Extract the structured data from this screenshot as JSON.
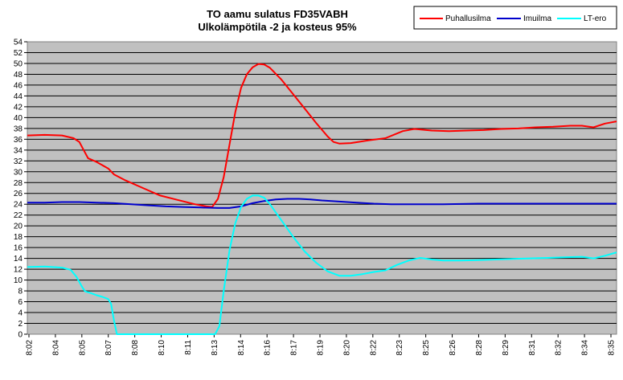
{
  "chart_data": {
    "type": "line",
    "title": "TO aamu sulatus FD35VABH",
    "subtitle": "Ulkolämpötila -2 ja kosteus 95%",
    "xlabel": "",
    "ylabel": "",
    "ylim": [
      0,
      54
    ],
    "y_ticks": [
      0,
      2,
      4,
      6,
      8,
      10,
      12,
      14,
      16,
      18,
      20,
      22,
      24,
      26,
      28,
      30,
      32,
      34,
      36,
      38,
      40,
      42,
      44,
      46,
      48,
      50,
      52,
      54
    ],
    "x_range_minutes": [
      482,
      516
    ],
    "x_tick_labels": [
      "8:02",
      "8:04",
      "8:05",
      "8:07",
      "8:08",
      "8:10",
      "8:11",
      "8:13",
      "8:14",
      "8:16",
      "8:17",
      "8:19",
      "8:20",
      "8:22",
      "8:23",
      "8:25",
      "8:26",
      "8:28",
      "8:29",
      "8:31",
      "8:32",
      "8:34",
      "8:35"
    ],
    "grid": true,
    "plot_background": "#c0c0c0",
    "legend_position": "top-right",
    "series": [
      {
        "name": "Puhallusilma",
        "color": "#ff0000",
        "points": [
          [
            "8:02:00",
            36.7
          ],
          [
            "8:03:00",
            36.8
          ],
          [
            "8:04:00",
            36.7
          ],
          [
            "8:04:40",
            36.2
          ],
          [
            "8:05:00",
            35.5
          ],
          [
            "8:05:15",
            34.0
          ],
          [
            "8:05:30",
            32.5
          ],
          [
            "8:06:00",
            31.8
          ],
          [
            "8:06:40",
            30.6
          ],
          [
            "8:07:00",
            29.5
          ],
          [
            "8:07:40",
            28.4
          ],
          [
            "8:08:40",
            27.0
          ],
          [
            "8:09:40",
            25.6
          ],
          [
            "8:10:40",
            24.8
          ],
          [
            "8:11:40",
            24.0
          ],
          [
            "8:12:20",
            23.6
          ],
          [
            "8:12:40",
            23.5
          ],
          [
            "8:13:00",
            25.0
          ],
          [
            "8:13:20",
            29.0
          ],
          [
            "8:13:40",
            35.0
          ],
          [
            "8:14:00",
            41.0
          ],
          [
            "8:14:20",
            45.5
          ],
          [
            "8:14:40",
            48.0
          ],
          [
            "8:15:00",
            49.3
          ],
          [
            "8:15:20",
            49.9
          ],
          [
            "8:15:40",
            49.8
          ],
          [
            "8:16:00",
            49.2
          ],
          [
            "8:16:40",
            47.0
          ],
          [
            "8:17:40",
            43.0
          ],
          [
            "8:18:40",
            39.0
          ],
          [
            "8:19:20",
            36.5
          ],
          [
            "8:19:40",
            35.5
          ],
          [
            "8:20:00",
            35.2
          ],
          [
            "8:20:40",
            35.3
          ],
          [
            "8:21:40",
            35.8
          ],
          [
            "8:22:40",
            36.2
          ],
          [
            "8:23:40",
            37.5
          ],
          [
            "8:24:20",
            37.9
          ],
          [
            "8:25:20",
            37.6
          ],
          [
            "8:26:20",
            37.5
          ],
          [
            "8:27:20",
            37.6
          ],
          [
            "8:28:20",
            37.7
          ],
          [
            "8:29:20",
            37.9
          ],
          [
            "8:30:20",
            38.0
          ],
          [
            "8:31:20",
            38.2
          ],
          [
            "8:32:20",
            38.3
          ],
          [
            "8:33:20",
            38.5
          ],
          [
            "8:34:00",
            38.5
          ],
          [
            "8:34:40",
            38.2
          ],
          [
            "8:35:20",
            38.9
          ],
          [
            "8:36:00",
            39.3
          ]
        ]
      },
      {
        "name": "Imuilma",
        "color": "#0000cc",
        "points": [
          [
            "8:02:00",
            24.3
          ],
          [
            "8:03:00",
            24.3
          ],
          [
            "8:04:00",
            24.4
          ],
          [
            "8:05:00",
            24.4
          ],
          [
            "8:06:00",
            24.3
          ],
          [
            "8:07:00",
            24.2
          ],
          [
            "8:08:00",
            24.0
          ],
          [
            "8:09:00",
            23.8
          ],
          [
            "8:10:00",
            23.6
          ],
          [
            "8:11:00",
            23.5
          ],
          [
            "8:12:00",
            23.4
          ],
          [
            "8:13:00",
            23.3
          ],
          [
            "8:13:40",
            23.3
          ],
          [
            "8:14:20",
            23.6
          ],
          [
            "8:15:00",
            24.2
          ],
          [
            "8:15:40",
            24.6
          ],
          [
            "8:16:20",
            24.9
          ],
          [
            "8:17:00",
            25.0
          ],
          [
            "8:17:40",
            25.0
          ],
          [
            "8:18:20",
            24.9
          ],
          [
            "8:19:00",
            24.7
          ],
          [
            "8:20:00",
            24.5
          ],
          [
            "8:21:00",
            24.3
          ],
          [
            "8:22:00",
            24.1
          ],
          [
            "8:23:00",
            24.0
          ],
          [
            "8:24:00",
            24.0
          ],
          [
            "8:25:00",
            24.0
          ],
          [
            "8:26:00",
            24.0
          ],
          [
            "8:28:00",
            24.1
          ],
          [
            "8:30:00",
            24.1
          ],
          [
            "8:32:00",
            24.1
          ],
          [
            "8:34:00",
            24.1
          ],
          [
            "8:36:00",
            24.1
          ]
        ]
      },
      {
        "name": "LT-ero",
        "color": "#00ffff",
        "points": [
          [
            "8:02:00",
            12.4
          ],
          [
            "8:03:00",
            12.5
          ],
          [
            "8:04:00",
            12.3
          ],
          [
            "8:04:30",
            11.9
          ],
          [
            "8:04:50",
            10.6
          ],
          [
            "8:05:10",
            8.7
          ],
          [
            "8:05:20",
            7.9
          ],
          [
            "8:05:40",
            7.6
          ],
          [
            "8:06:00",
            7.2
          ],
          [
            "8:06:20",
            6.9
          ],
          [
            "8:06:40",
            6.5
          ],
          [
            "8:06:50",
            5.6
          ],
          [
            "8:07:00",
            2.5
          ],
          [
            "8:07:10",
            0.0
          ],
          [
            "8:08:00",
            0.0
          ],
          [
            "8:09:00",
            0.0
          ],
          [
            "8:10:00",
            0.0
          ],
          [
            "8:11:00",
            0.0
          ],
          [
            "8:12:00",
            0.0
          ],
          [
            "8:12:50",
            0.0
          ],
          [
            "8:13:05",
            1.5
          ],
          [
            "8:13:20",
            8.0
          ],
          [
            "8:13:40",
            15.5
          ],
          [
            "8:14:00",
            20.5
          ],
          [
            "8:14:20",
            23.5
          ],
          [
            "8:14:40",
            25.0
          ],
          [
            "8:15:00",
            25.6
          ],
          [
            "8:15:20",
            25.6
          ],
          [
            "8:15:40",
            25.2
          ],
          [
            "8:16:00",
            24.0
          ],
          [
            "8:16:40",
            21.0
          ],
          [
            "8:17:20",
            18.0
          ],
          [
            "8:18:00",
            15.3
          ],
          [
            "8:18:40",
            13.2
          ],
          [
            "8:19:20",
            11.6
          ],
          [
            "8:20:00",
            10.8
          ],
          [
            "8:20:40",
            10.8
          ],
          [
            "8:21:20",
            11.1
          ],
          [
            "8:22:00",
            11.5
          ],
          [
            "8:22:40",
            11.8
          ],
          [
            "8:23:20",
            12.8
          ],
          [
            "8:24:00",
            13.6
          ],
          [
            "8:24:40",
            14.1
          ],
          [
            "8:25:20",
            13.8
          ],
          [
            "8:26:00",
            13.6
          ],
          [
            "8:27:00",
            13.6
          ],
          [
            "8:28:00",
            13.7
          ],
          [
            "8:29:00",
            13.8
          ],
          [
            "8:30:00",
            13.9
          ],
          [
            "8:31:00",
            14.0
          ],
          [
            "8:32:00",
            14.1
          ],
          [
            "8:33:00",
            14.2
          ],
          [
            "8:34:00",
            14.3
          ],
          [
            "8:34:40",
            14.0
          ],
          [
            "8:35:20",
            14.5
          ],
          [
            "8:36:00",
            15.1
          ]
        ]
      }
    ]
  }
}
